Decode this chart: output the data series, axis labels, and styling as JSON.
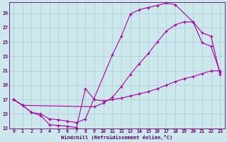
{
  "background_color": "#cce8ec",
  "grid_color": "#aacdd6",
  "line_color": "#aa00aa",
  "xlabel": "Windchill (Refroidissement éolien,°C)",
  "xlim": [
    -0.5,
    23.5
  ],
  "ylim": [
    13,
    30
  ],
  "yticks": [
    13,
    15,
    17,
    19,
    21,
    23,
    25,
    27,
    29
  ],
  "xticks": [
    0,
    1,
    2,
    3,
    4,
    5,
    6,
    7,
    8,
    9,
    10,
    11,
    12,
    13,
    14,
    15,
    16,
    17,
    18,
    19,
    20,
    21,
    22,
    23
  ],
  "curve_upper_x": [
    0,
    1,
    2,
    3,
    4,
    5,
    6,
    7,
    8,
    11,
    12,
    13,
    14,
    15,
    16,
    17,
    18,
    20,
    21,
    22,
    23
  ],
  "curve_upper_y": [
    17.0,
    16.2,
    15.2,
    15.0,
    14.3,
    14.2,
    14.0,
    13.8,
    14.3,
    23.2,
    25.8,
    28.9,
    29.5,
    29.8,
    30.1,
    30.4,
    30.2,
    27.8,
    24.9,
    24.4,
    20.8
  ],
  "curve_middle_x": [
    0,
    1,
    9,
    10,
    11,
    12,
    13,
    14,
    15,
    16,
    17,
    18,
    19,
    20,
    21,
    22,
    23
  ],
  "curve_middle_y": [
    17.0,
    16.2,
    16.0,
    16.5,
    17.3,
    18.8,
    20.5,
    22.0,
    23.4,
    25.0,
    26.5,
    27.4,
    27.8,
    27.8,
    26.3,
    25.8,
    20.5
  ],
  "curve_lower_x": [
    0,
    1,
    2,
    3,
    4,
    5,
    6,
    7,
    8,
    9,
    10,
    11,
    12,
    13,
    14,
    15,
    16,
    17,
    18,
    19,
    20,
    21,
    22,
    23
  ],
  "curve_lower_y": [
    17.0,
    16.2,
    15.2,
    14.8,
    13.5,
    13.4,
    13.3,
    13.1,
    18.5,
    17.0,
    16.8,
    17.0,
    17.2,
    17.5,
    17.8,
    18.1,
    18.5,
    19.0,
    19.5,
    19.9,
    20.2,
    20.6,
    21.0,
    21.0
  ]
}
